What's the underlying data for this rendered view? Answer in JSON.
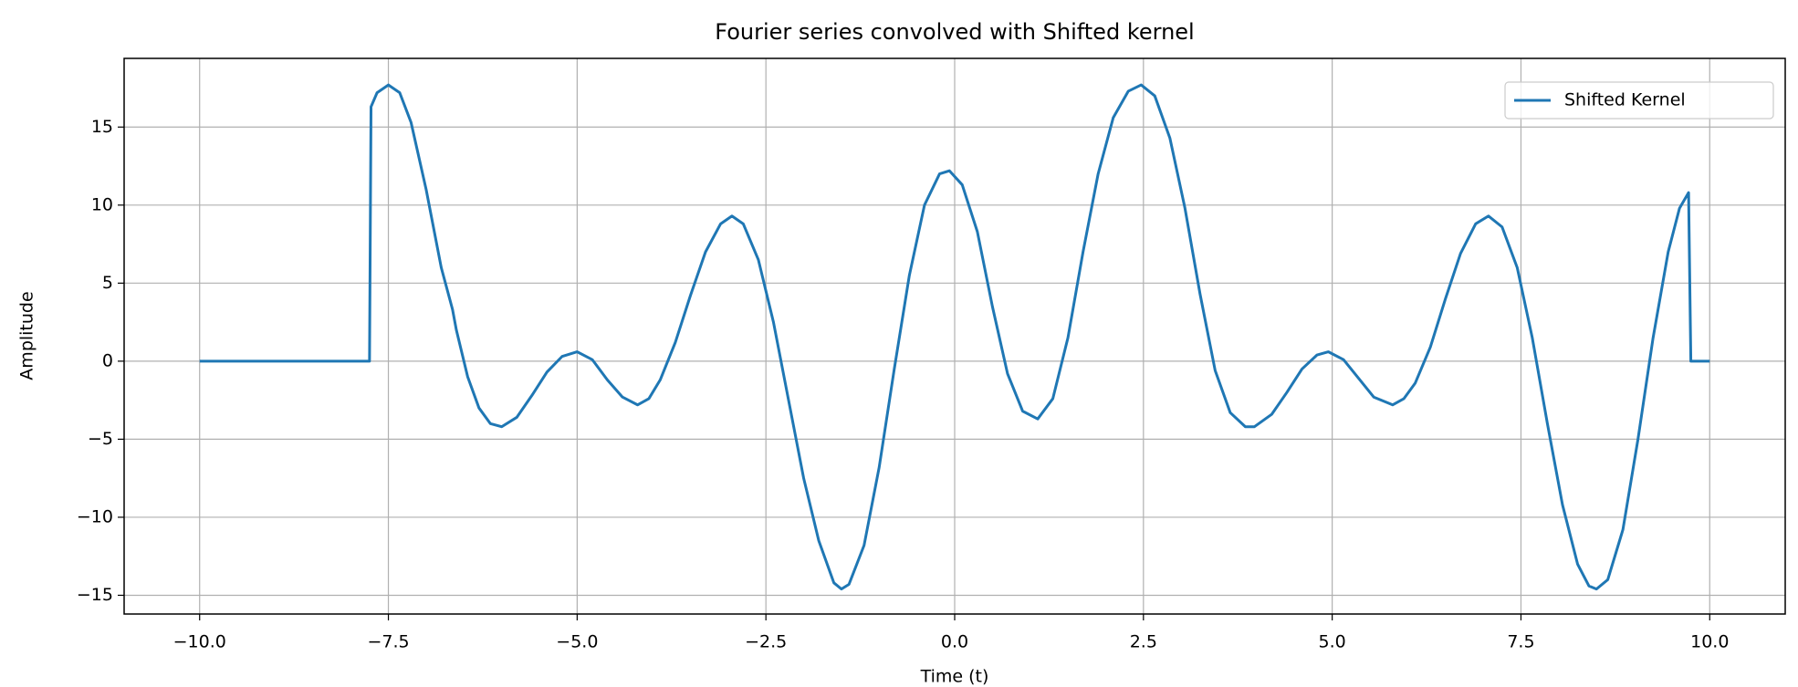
{
  "chart_data": {
    "type": "line",
    "title": "Fourier series convolved with Shifted kernel",
    "xlabel": "Time (t)",
    "ylabel": "Amplitude",
    "x": [
      -10,
      -7.75,
      -7.73,
      -7.65,
      -7.5,
      -7.35,
      -7.2,
      -7.0,
      -6.8,
      -6.65,
      -6.6,
      -6.45,
      -6.3,
      -6.15,
      -6.0,
      -5.8,
      -5.6,
      -5.4,
      -5.2,
      -5.0,
      -4.8,
      -4.6,
      -4.4,
      -4.2,
      -4.05,
      -3.9,
      -3.7,
      -3.5,
      -3.3,
      -3.1,
      -2.95,
      -2.8,
      -2.6,
      -2.4,
      -2.2,
      -2.0,
      -1.8,
      -1.6,
      -1.5,
      -1.4,
      -1.2,
      -1.0,
      -0.8,
      -0.6,
      -0.4,
      -0.2,
      -0.07,
      0.1,
      0.3,
      0.5,
      0.7,
      0.9,
      1.1,
      1.3,
      1.5,
      1.7,
      1.9,
      2.1,
      2.3,
      2.47,
      2.65,
      2.85,
      3.05,
      3.25,
      3.45,
      3.65,
      3.85,
      3.97,
      4.2,
      4.4,
      4.6,
      4.8,
      4.95,
      5.15,
      5.35,
      5.55,
      5.8,
      5.95,
      6.1,
      6.3,
      6.5,
      6.7,
      6.9,
      7.07,
      7.25,
      7.45,
      7.65,
      7.85,
      8.05,
      8.25,
      8.4,
      8.5,
      8.65,
      8.85,
      9.05,
      9.25,
      9.45,
      9.6,
      9.72,
      9.75,
      10
    ],
    "series": [
      {
        "name": "Shifted Kernel",
        "color": "#1f77b4",
        "values": [
          0,
          0,
          16.3,
          17.2,
          17.7,
          17.2,
          15.3,
          11.0,
          6.0,
          3.3,
          2.0,
          -1.0,
          -3.0,
          -4.0,
          -4.2,
          -3.6,
          -2.2,
          -0.7,
          0.3,
          0.6,
          0.1,
          -1.2,
          -2.3,
          -2.8,
          -2.4,
          -1.2,
          1.2,
          4.2,
          7.0,
          8.8,
          9.3,
          8.8,
          6.5,
          2.5,
          -2.5,
          -7.5,
          -11.5,
          -14.2,
          -14.6,
          -14.3,
          -11.8,
          -6.8,
          -0.5,
          5.5,
          10.0,
          12.0,
          12.2,
          11.3,
          8.3,
          3.5,
          -0.8,
          -3.2,
          -3.7,
          -2.4,
          1.5,
          7.0,
          12.0,
          15.6,
          17.3,
          17.7,
          17.0,
          14.3,
          9.8,
          4.3,
          -0.6,
          -3.3,
          -4.2,
          -4.2,
          -3.4,
          -2.0,
          -0.5,
          0.4,
          0.6,
          0.1,
          -1.1,
          -2.3,
          -2.8,
          -2.4,
          -1.4,
          0.9,
          4.0,
          6.9,
          8.8,
          9.3,
          8.6,
          6.0,
          1.5,
          -4.0,
          -9.2,
          -13.0,
          -14.4,
          -14.6,
          -14.0,
          -10.8,
          -5.0,
          1.5,
          7.0,
          9.8,
          10.8,
          0,
          0
        ]
      }
    ],
    "xlim": [
      -11,
      11
    ],
    "ylim": [
      -16.2,
      19.4
    ],
    "xticks": [
      {
        "value": -10,
        "label": "−10.0"
      },
      {
        "value": -7.5,
        "label": "−7.5"
      },
      {
        "value": -5,
        "label": "−5.0"
      },
      {
        "value": -2.5,
        "label": "−2.5"
      },
      {
        "value": 0,
        "label": "0.0"
      },
      {
        "value": 2.5,
        "label": "2.5"
      },
      {
        "value": 5,
        "label": "5.0"
      },
      {
        "value": 7.5,
        "label": "7.5"
      },
      {
        "value": 10,
        "label": "10.0"
      }
    ],
    "yticks": [
      {
        "value": -15,
        "label": "−15"
      },
      {
        "value": -10,
        "label": "−10"
      },
      {
        "value": -5,
        "label": "−5"
      },
      0,
      5,
      10,
      15
    ],
    "grid": true,
    "legend": "upper right"
  }
}
